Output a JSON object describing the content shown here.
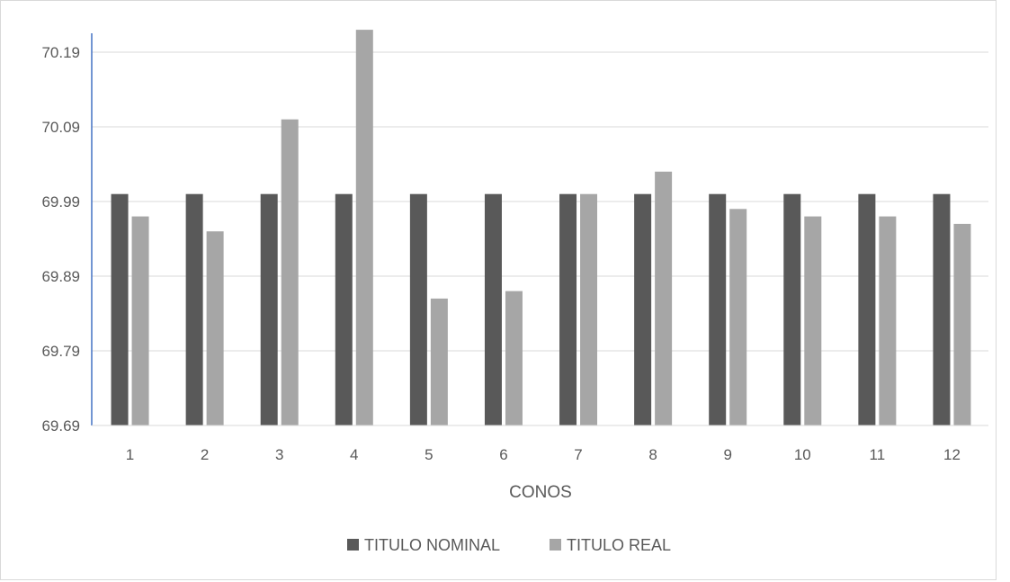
{
  "chart_data": {
    "type": "bar",
    "title": "",
    "xlabel": "CONOS",
    "ylabel": "",
    "categories": [
      "1",
      "2",
      "3",
      "4",
      "5",
      "6",
      "7",
      "8",
      "9",
      "10",
      "11",
      "12"
    ],
    "y_ticks": [
      "70.19",
      "70.09",
      "69.99",
      "69.89",
      "69.79",
      "69.69"
    ],
    "ylim": [
      69.69,
      70.22
    ],
    "grid": true,
    "legend_position": "bottom",
    "series": [
      {
        "name": "TITULO NOMINAL",
        "color": "#595959",
        "values": [
          70.0,
          70.0,
          70.0,
          70.0,
          70.0,
          70.0,
          70.0,
          70.0,
          70.0,
          70.0,
          70.0,
          70.0
        ]
      },
      {
        "name": "TITULO REAL",
        "color": "#a6a6a6",
        "values": [
          69.97,
          69.95,
          70.1,
          70.22,
          69.86,
          69.87,
          70.0,
          70.03,
          69.98,
          69.97,
          69.97,
          69.96
        ]
      }
    ]
  }
}
